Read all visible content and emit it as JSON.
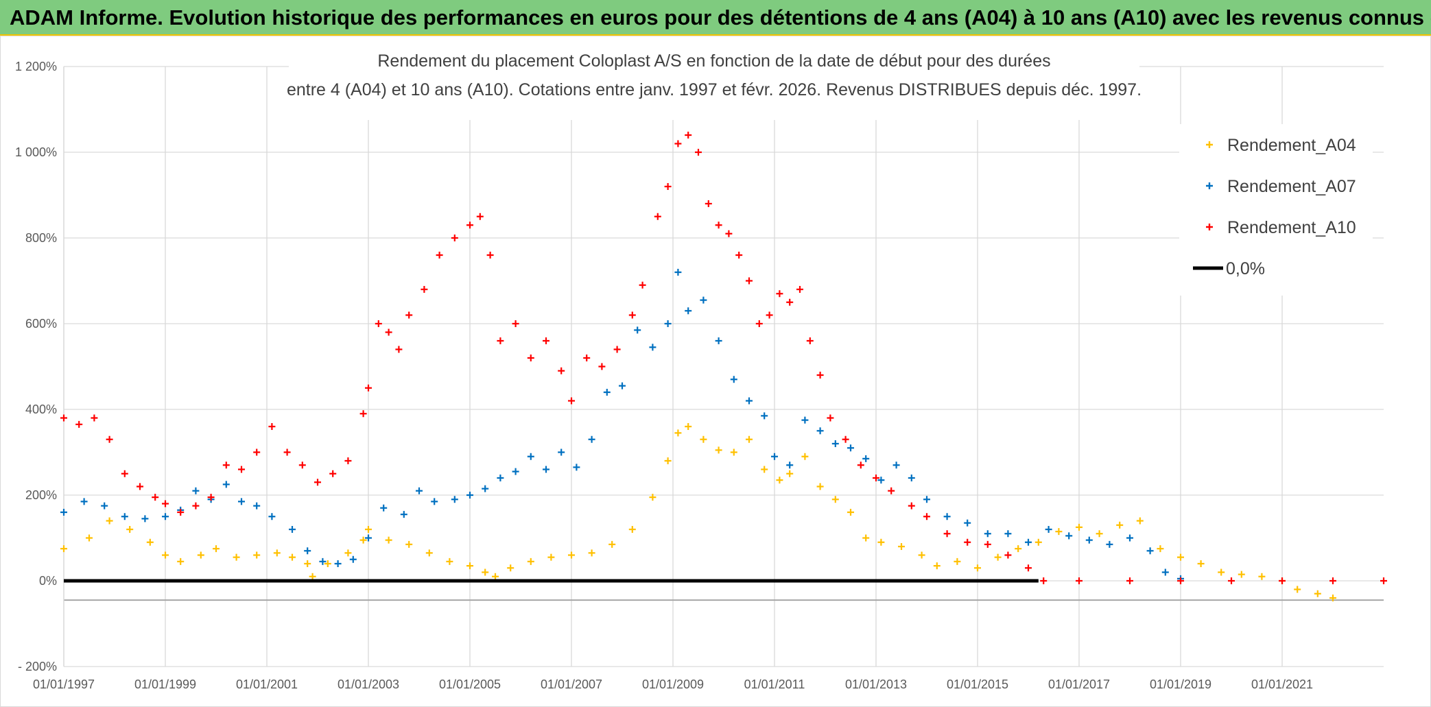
{
  "banner": {
    "title": "ADAM Informe. Evolution historique des performances en euros pour des détentions de 4 ans (A04) à 10 ans (A10) avec les revenus connus distribués"
  },
  "chart_data": {
    "type": "scatter",
    "title_line1": "Rendement du placement Coloplast A/S en fonction de la date de début pour des durées",
    "title_line2": "entre 4 (A04) et 10 ans (A10). Cotations entre janv. 1997 et févr. 2026. Revenus DISTRIBUES depuis déc. 1997.",
    "ylim": [
      -200,
      1200
    ],
    "xlim": [
      1997.0,
      2023.0
    ],
    "y_ticks": [
      -200,
      0,
      200,
      400,
      600,
      800,
      1000,
      1200
    ],
    "y_tick_labels": [
      "- 200%",
      "0%",
      "200%",
      "400%",
      "600%",
      "800%",
      "1 000%",
      "1 200%"
    ],
    "x_ticks": [
      1997,
      1999,
      2001,
      2003,
      2005,
      2007,
      2009,
      2011,
      2013,
      2015,
      2017,
      2019,
      2021
    ],
    "x_tick_labels": [
      "01/01/1997",
      "01/01/1999",
      "01/01/2001",
      "01/01/2003",
      "01/01/2005",
      "01/01/2007",
      "01/01/2009",
      "01/01/2011",
      "01/01/2013",
      "01/01/2015",
      "01/01/2017",
      "01/01/2019",
      "01/01/2021"
    ],
    "grid": true,
    "legend_position": "top-right",
    "series": [
      {
        "name": "Rendement_A04",
        "color": "#ffc000",
        "marker": "+",
        "points": [
          [
            1997.0,
            75
          ],
          [
            1997.5,
            100
          ],
          [
            1997.9,
            140
          ],
          [
            1998.3,
            120
          ],
          [
            1998.7,
            90
          ],
          [
            1999.0,
            60
          ],
          [
            1999.3,
            45
          ],
          [
            1999.7,
            60
          ],
          [
            2000.0,
            75
          ],
          [
            2000.4,
            55
          ],
          [
            2000.8,
            60
          ],
          [
            2001.2,
            65
          ],
          [
            2001.5,
            55
          ],
          [
            2001.8,
            40
          ],
          [
            2001.9,
            10
          ],
          [
            2002.2,
            40
          ],
          [
            2002.6,
            65
          ],
          [
            2002.9,
            95
          ],
          [
            2003.0,
            120
          ],
          [
            2003.4,
            95
          ],
          [
            2003.8,
            85
          ],
          [
            2004.2,
            65
          ],
          [
            2004.6,
            45
          ],
          [
            2005.0,
            35
          ],
          [
            2005.3,
            20
          ],
          [
            2005.5,
            10
          ],
          [
            2005.8,
            30
          ],
          [
            2006.2,
            45
          ],
          [
            2006.6,
            55
          ],
          [
            2007.0,
            60
          ],
          [
            2007.4,
            65
          ],
          [
            2007.8,
            85
          ],
          [
            2008.2,
            120
          ],
          [
            2008.6,
            195
          ],
          [
            2008.9,
            280
          ],
          [
            2009.1,
            345
          ],
          [
            2009.3,
            360
          ],
          [
            2009.6,
            330
          ],
          [
            2009.9,
            305
          ],
          [
            2010.2,
            300
          ],
          [
            2010.5,
            330
          ],
          [
            2010.8,
            260
          ],
          [
            2011.1,
            235
          ],
          [
            2011.3,
            250
          ],
          [
            2011.6,
            290
          ],
          [
            2011.9,
            220
          ],
          [
            2012.2,
            190
          ],
          [
            2012.5,
            160
          ],
          [
            2012.8,
            100
          ],
          [
            2013.1,
            90
          ],
          [
            2013.5,
            80
          ],
          [
            2013.9,
            60
          ],
          [
            2014.2,
            35
          ],
          [
            2014.6,
            45
          ],
          [
            2015.0,
            30
          ],
          [
            2015.4,
            55
          ],
          [
            2015.8,
            75
          ],
          [
            2016.2,
            90
          ],
          [
            2016.6,
            115
          ],
          [
            2017.0,
            125
          ],
          [
            2017.4,
            110
          ],
          [
            2017.8,
            130
          ],
          [
            2018.2,
            140
          ],
          [
            2018.6,
            75
          ],
          [
            2019.0,
            55
          ],
          [
            2019.4,
            40
          ],
          [
            2019.8,
            20
          ],
          [
            2020.2,
            15
          ],
          [
            2020.6,
            10
          ],
          [
            2021.0,
            0
          ],
          [
            2021.3,
            -20
          ],
          [
            2021.7,
            -30
          ],
          [
            2022.0,
            -40
          ]
        ]
      },
      {
        "name": "Rendement_A07",
        "color": "#0070c0",
        "marker": "+",
        "points": [
          [
            1997.0,
            160
          ],
          [
            1997.4,
            185
          ],
          [
            1997.8,
            175
          ],
          [
            1998.2,
            150
          ],
          [
            1998.6,
            145
          ],
          [
            1999.0,
            150
          ],
          [
            1999.3,
            165
          ],
          [
            1999.6,
            210
          ],
          [
            1999.9,
            190
          ],
          [
            2000.2,
            225
          ],
          [
            2000.5,
            185
          ],
          [
            2000.8,
            175
          ],
          [
            2001.1,
            150
          ],
          [
            2001.5,
            120
          ],
          [
            2001.8,
            70
          ],
          [
            2002.1,
            45
          ],
          [
            2002.4,
            40
          ],
          [
            2002.7,
            50
          ],
          [
            2003.0,
            100
          ],
          [
            2003.3,
            170
          ],
          [
            2003.7,
            155
          ],
          [
            2004.0,
            210
          ],
          [
            2004.3,
            185
          ],
          [
            2004.7,
            190
          ],
          [
            2005.0,
            200
          ],
          [
            2005.3,
            215
          ],
          [
            2005.6,
            240
          ],
          [
            2005.9,
            255
          ],
          [
            2006.2,
            290
          ],
          [
            2006.5,
            260
          ],
          [
            2006.8,
            300
          ],
          [
            2007.1,
            265
          ],
          [
            2007.4,
            330
          ],
          [
            2007.7,
            440
          ],
          [
            2008.0,
            455
          ],
          [
            2008.3,
            585
          ],
          [
            2008.6,
            545
          ],
          [
            2008.9,
            600
          ],
          [
            2009.1,
            720
          ],
          [
            2009.3,
            630
          ],
          [
            2009.6,
            655
          ],
          [
            2009.9,
            560
          ],
          [
            2010.2,
            470
          ],
          [
            2010.5,
            420
          ],
          [
            2010.8,
            385
          ],
          [
            2011.0,
            290
          ],
          [
            2011.3,
            270
          ],
          [
            2011.6,
            375
          ],
          [
            2011.9,
            350
          ],
          [
            2012.2,
            320
          ],
          [
            2012.5,
            310
          ],
          [
            2012.8,
            285
          ],
          [
            2013.1,
            235
          ],
          [
            2013.4,
            270
          ],
          [
            2013.7,
            240
          ],
          [
            2014.0,
            190
          ],
          [
            2014.4,
            150
          ],
          [
            2014.8,
            135
          ],
          [
            2015.2,
            110
          ],
          [
            2015.6,
            110
          ],
          [
            2016.0,
            90
          ],
          [
            2016.4,
            120
          ],
          [
            2016.8,
            105
          ],
          [
            2017.2,
            95
          ],
          [
            2017.6,
            85
          ],
          [
            2018.0,
            100
          ],
          [
            2018.4,
            70
          ],
          [
            2018.7,
            20
          ],
          [
            2019.0,
            5
          ]
        ]
      },
      {
        "name": "Rendement_A10",
        "color": "#ff0000",
        "marker": "+",
        "points": [
          [
            1997.0,
            380
          ],
          [
            1997.3,
            365
          ],
          [
            1997.6,
            380
          ],
          [
            1997.9,
            330
          ],
          [
            1998.2,
            250
          ],
          [
            1998.5,
            220
          ],
          [
            1998.8,
            195
          ],
          [
            1999.0,
            180
          ],
          [
            1999.3,
            160
          ],
          [
            1999.6,
            175
          ],
          [
            1999.9,
            195
          ],
          [
            2000.2,
            270
          ],
          [
            2000.5,
            260
          ],
          [
            2000.8,
            300
          ],
          [
            2001.1,
            360
          ],
          [
            2001.4,
            300
          ],
          [
            2001.7,
            270
          ],
          [
            2002.0,
            230
          ],
          [
            2002.3,
            250
          ],
          [
            2002.6,
            280
          ],
          [
            2002.9,
            390
          ],
          [
            2003.0,
            450
          ],
          [
            2003.2,
            600
          ],
          [
            2003.4,
            580
          ],
          [
            2003.6,
            540
          ],
          [
            2003.8,
            620
          ],
          [
            2004.1,
            680
          ],
          [
            2004.4,
            760
          ],
          [
            2004.7,
            800
          ],
          [
            2005.0,
            830
          ],
          [
            2005.2,
            850
          ],
          [
            2005.4,
            760
          ],
          [
            2005.6,
            560
          ],
          [
            2005.9,
            600
          ],
          [
            2006.2,
            520
          ],
          [
            2006.5,
            560
          ],
          [
            2006.8,
            490
          ],
          [
            2007.0,
            420
          ],
          [
            2007.3,
            520
          ],
          [
            2007.6,
            500
          ],
          [
            2007.9,
            540
          ],
          [
            2008.2,
            620
          ],
          [
            2008.4,
            690
          ],
          [
            2008.7,
            850
          ],
          [
            2008.9,
            920
          ],
          [
            2009.1,
            1020
          ],
          [
            2009.3,
            1040
          ],
          [
            2009.5,
            1000
          ],
          [
            2009.7,
            880
          ],
          [
            2009.9,
            830
          ],
          [
            2010.1,
            810
          ],
          [
            2010.3,
            760
          ],
          [
            2010.5,
            700
          ],
          [
            2010.7,
            600
          ],
          [
            2010.9,
            620
          ],
          [
            2011.1,
            670
          ],
          [
            2011.3,
            650
          ],
          [
            2011.5,
            680
          ],
          [
            2011.7,
            560
          ],
          [
            2011.9,
            480
          ],
          [
            2012.1,
            380
          ],
          [
            2012.4,
            330
          ],
          [
            2012.7,
            270
          ],
          [
            2013.0,
            240
          ],
          [
            2013.3,
            210
          ],
          [
            2013.7,
            175
          ],
          [
            2014.0,
            150
          ],
          [
            2014.4,
            110
          ],
          [
            2014.8,
            90
          ],
          [
            2015.2,
            85
          ],
          [
            2015.6,
            60
          ],
          [
            2016.0,
            30
          ],
          [
            2016.3,
            0
          ],
          [
            2017.0,
            0
          ],
          [
            2018.0,
            0
          ],
          [
            2019.0,
            0
          ],
          [
            2020.0,
            0
          ],
          [
            2021.0,
            0
          ],
          [
            2022.0,
            0
          ],
          [
            2023.0,
            0
          ]
        ]
      },
      {
        "name": "0,0%",
        "color": "#000000",
        "marker": "line",
        "points": [
          [
            1997.0,
            0
          ],
          [
            2016.2,
            0
          ]
        ]
      }
    ]
  }
}
